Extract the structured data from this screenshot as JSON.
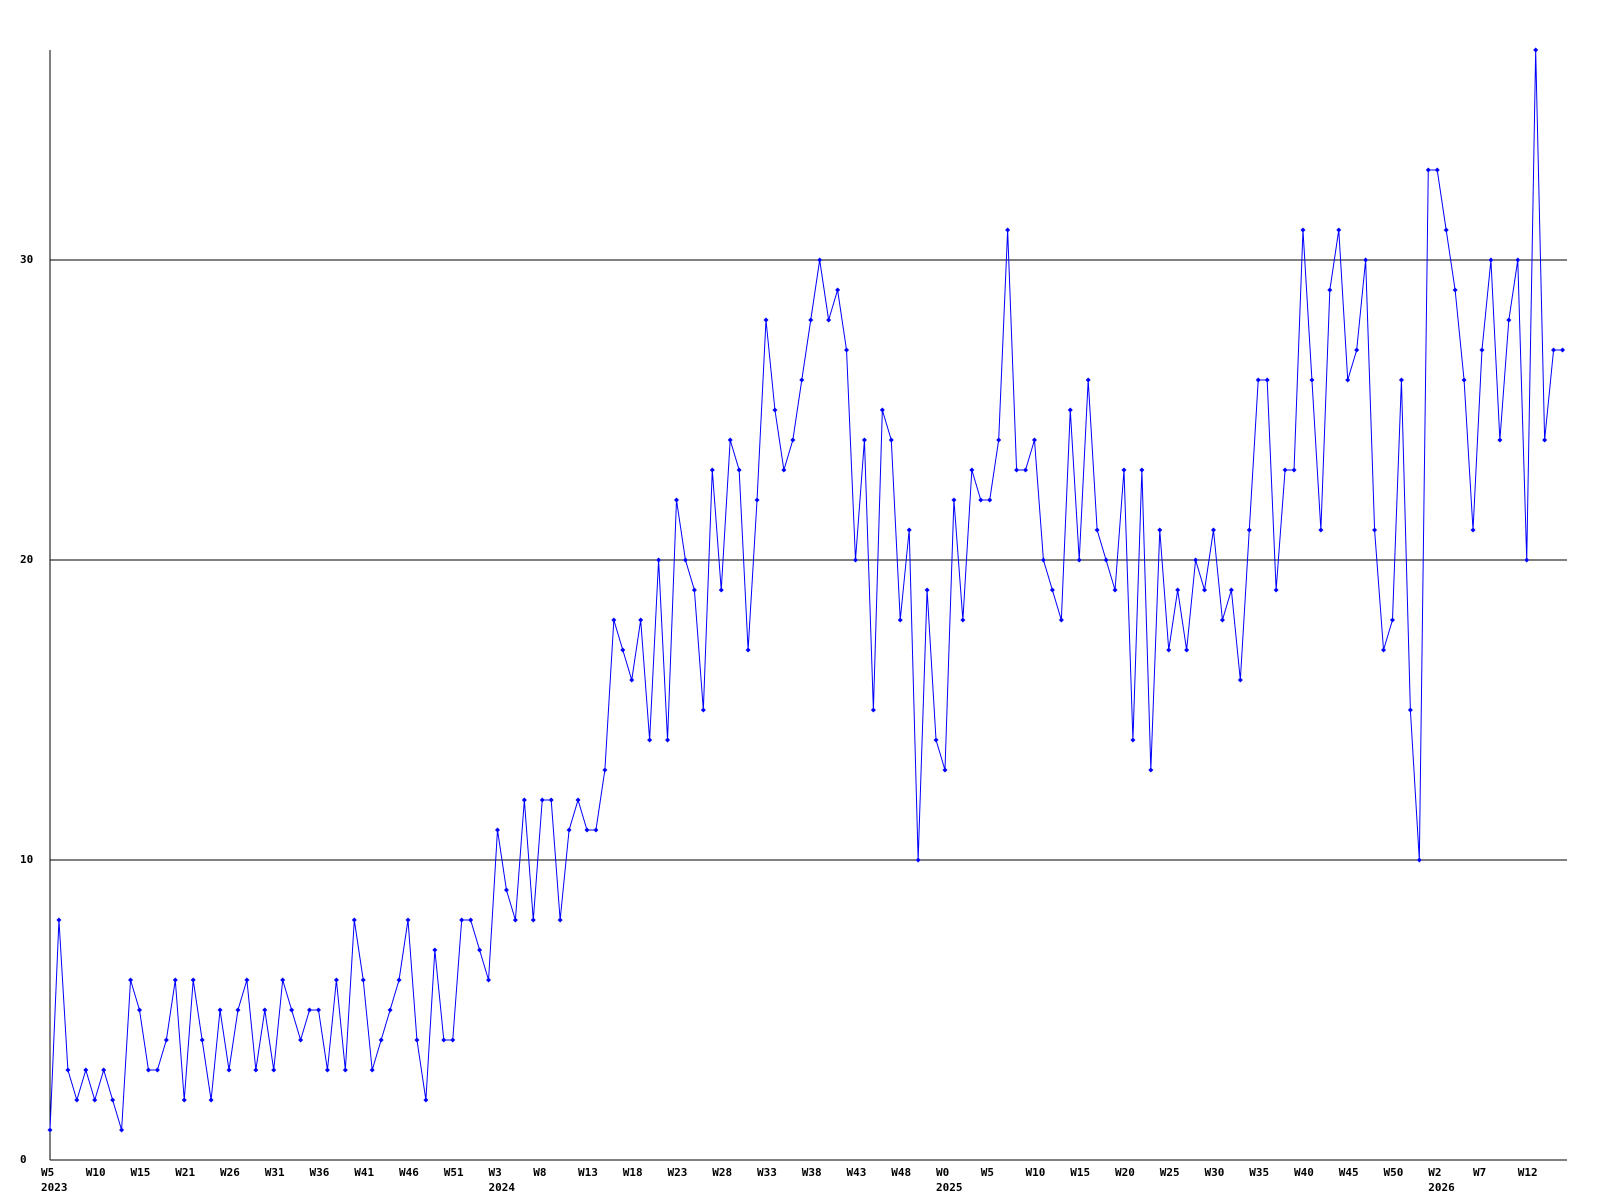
{
  "chart_data": {
    "type": "line",
    "categories": [
      "W5",
      null,
      null,
      null,
      null,
      "W10",
      null,
      null,
      null,
      null,
      "W15",
      null,
      null,
      null,
      null,
      "W21",
      null,
      null,
      null,
      null,
      "W26",
      null,
      null,
      null,
      null,
      "W31",
      null,
      null,
      null,
      null,
      "W36",
      null,
      null,
      null,
      null,
      "W41",
      null,
      null,
      null,
      null,
      "W46",
      null,
      null,
      null,
      null,
      "W51",
      null,
      null,
      null,
      null,
      "W3",
      null,
      null,
      null,
      null,
      "W8",
      null,
      null,
      null,
      null,
      "W13",
      null,
      null,
      null,
      null,
      "W18",
      null,
      null,
      null,
      null,
      "W23",
      null,
      null,
      null,
      null,
      "W28",
      null,
      null,
      null,
      null,
      "W33",
      null,
      null,
      null,
      null,
      "W38",
      null,
      null,
      null,
      null,
      "W43",
      null,
      null,
      null,
      null,
      "W48",
      null,
      null,
      null,
      null,
      "W0",
      null,
      null,
      null,
      null,
      "W5",
      null,
      null,
      null,
      null,
      "W10",
      null,
      null,
      null,
      null,
      "W15",
      null,
      null,
      null,
      null,
      "W20",
      null,
      null,
      null,
      null,
      "W25",
      null,
      null,
      null,
      null,
      "W30",
      null,
      null,
      null,
      null,
      "W35",
      null,
      null,
      null,
      null,
      "W40",
      null,
      null,
      null,
      null,
      "W45",
      null,
      null,
      null,
      null,
      "W50",
      null,
      null,
      null,
      null,
      "W2",
      null,
      null,
      null,
      null,
      "W7",
      null,
      null,
      null,
      null,
      "W12",
      null,
      null,
      null,
      null
    ],
    "year_labels": [
      "2023",
      null,
      null,
      null,
      null,
      null,
      null,
      null,
      null,
      null,
      null,
      null,
      null,
      null,
      null,
      null,
      null,
      null,
      null,
      null,
      null,
      null,
      null,
      null,
      null,
      null,
      null,
      null,
      null,
      null,
      null,
      null,
      null,
      null,
      null,
      null,
      null,
      null,
      null,
      null,
      null,
      null,
      null,
      null,
      null,
      null,
      null,
      null,
      null,
      null,
      "2024",
      null,
      null,
      null,
      null,
      null,
      null,
      null,
      null,
      null,
      null,
      null,
      null,
      null,
      null,
      null,
      null,
      null,
      null,
      null,
      null,
      null,
      null,
      null,
      null,
      null,
      null,
      null,
      null,
      null,
      null,
      null,
      null,
      null,
      null,
      null,
      null,
      null,
      null,
      null,
      null,
      null,
      null,
      null,
      null,
      null,
      null,
      null,
      null,
      null,
      "2025",
      null,
      null,
      null,
      null,
      null,
      null,
      null,
      null,
      null,
      null,
      null,
      null,
      null,
      null,
      null,
      null,
      null,
      null,
      null,
      null,
      null,
      null,
      null,
      null,
      null,
      null,
      null,
      null,
      null,
      null,
      null,
      null,
      null,
      null,
      null,
      null,
      null,
      null,
      null,
      null,
      null,
      null,
      null,
      null,
      null,
      null,
      null,
      null,
      null,
      null,
      null,
      null,
      null,
      null,
      "2026",
      null,
      null,
      null,
      null,
      null,
      null,
      null,
      null,
      null,
      null,
      null,
      null,
      null,
      null
    ],
    "series": [
      {
        "color": "#0000ff",
        "values": [
          1,
          8,
          3,
          2,
          3,
          2,
          3,
          2,
          1,
          6,
          5,
          3,
          3,
          4,
          6,
          2,
          6,
          4,
          2,
          5,
          3,
          5,
          6,
          3,
          5,
          3,
          6,
          5,
          4,
          5,
          5,
          3,
          6,
          3,
          8,
          6,
          3,
          4,
          5,
          6,
          8,
          4,
          2,
          7,
          4,
          4,
          8,
          8,
          7,
          6,
          11,
          9,
          8,
          12,
          8,
          12,
          12,
          8,
          11,
          12,
          11,
          11,
          13,
          18,
          17,
          16,
          18,
          14,
          20,
          14,
          22,
          20,
          19,
          15,
          23,
          19,
          24,
          23,
          17,
          22,
          28,
          25,
          23,
          24,
          26,
          28,
          30,
          28,
          29,
          27,
          20,
          24,
          15,
          25,
          24,
          18,
          21,
          10,
          19,
          14,
          13,
          22,
          18,
          23,
          22,
          22,
          24,
          31,
          23,
          23,
          24,
          20,
          19,
          18,
          25,
          20,
          26,
          21,
          20,
          19,
          23,
          14,
          23,
          13,
          21,
          17,
          19,
          17,
          20,
          19,
          21,
          18,
          19,
          16,
          21,
          26,
          26,
          19,
          23,
          23,
          31,
          26,
          21,
          29,
          31,
          26,
          27,
          30,
          21,
          17,
          18,
          26,
          15,
          10,
          33,
          33,
          31,
          29,
          26,
          21,
          27,
          30,
          24,
          28,
          30,
          20,
          37,
          24,
          27,
          27
        ]
      }
    ],
    "ylim": [
      0,
      37
    ],
    "yticks": [
      0,
      10,
      20,
      30
    ],
    "grid": true
  }
}
